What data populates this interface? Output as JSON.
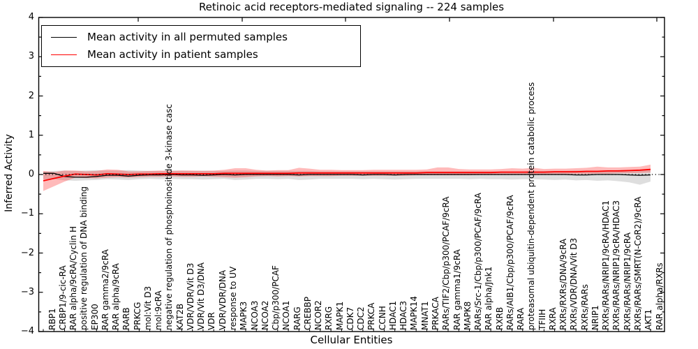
{
  "title": "Retinoic acid receptors-mediated signaling -- 224 samples",
  "legend": [
    {
      "label": "Mean activity in all permuted samples",
      "color": "#000000"
    },
    {
      "label": "Mean activity in patient samples",
      "color": "#ff0000"
    }
  ],
  "colors": {
    "permuted_line": "#000000",
    "patient_line": "#ff0000",
    "permuted_band": "rgba(0,0,0,0.13)",
    "patient_band": "rgba(255,0,0,0.27)",
    "frame": "#000000"
  },
  "chart_data": {
    "type": "line",
    "title": "Retinoic acid receptors-mediated signaling -- 224 samples",
    "xlabel": "Cellular Entities",
    "ylabel": "Inferred Activity",
    "ylim": [
      -4,
      4
    ],
    "grid": false,
    "legend_position": "upper-left",
    "zero_reference_line": "black dotted at y=0",
    "yticks": [
      {
        "value": 4,
        "label": "4"
      },
      {
        "value": 3,
        "label": "3"
      },
      {
        "value": 2,
        "label": "2"
      },
      {
        "value": 1,
        "label": "1"
      },
      {
        "value": 0,
        "label": "0"
      },
      {
        "value": -1,
        "label": "−1"
      },
      {
        "value": -2,
        "label": "−2"
      },
      {
        "value": -3,
        "label": "−3"
      },
      {
        "value": -4,
        "label": "−4"
      }
    ],
    "categories": [
      "RBP1",
      "CRBP1/9-cic-RA",
      "RAR alpha/9cRA/Cyclin H",
      "positive regulation of DNA binding",
      "EP300",
      "RAR gamma2/9cRA",
      "RAR alpha/9cRA",
      "RARB",
      "PRKCG",
      "mol:Vit D3",
      "mol:9cRA",
      "negative regulation of phosphoinositide 3-kinase casc",
      "KAT2B",
      "VDR/VDR/Vit D3",
      "VDR/Vit D3/DNA",
      "VDR",
      "VDR/VDR/DNA",
      "response to UV",
      "MAPK3",
      "NCOA3",
      "NCOA2",
      "Cbp/p300/PCAF",
      "NCOA1",
      "RARG",
      "CREBBP",
      "NCOR2",
      "RXRG",
      "MAPK1",
      "CDK7",
      "CDC2",
      "PRKCA",
      "CCNH",
      "HDAC1",
      "HDAC3",
      "MAPK14",
      "MNAT1",
      "PRKACA",
      "RARs/TIF2/Cbp/p300/PCAF/9cRA",
      "RAR gamma1/9cRA",
      "MAPK8",
      "RARs/Src-1/Cbp/p300/PCAF/9cRA",
      "RAR alpha/Jnk1",
      "RXRB",
      "RARs/AIB1/Cbp/p300/PCAF/9cRA",
      "RARA",
      "proteasomal ubiquitin-dependent protein catabolic process",
      "TFIIH",
      "RXRA",
      "RXRs/RXRs/DNA/9cRA",
      "RXRs/VDR/DNA/Vit D3",
      "RXRs/RARs",
      "NRIP1",
      "RXRs/RARs/NRIP1/9cRA/HDAC1",
      "RXRs/RARs/NRIP1/9cRA/HDAC3",
      "RXRs/RARs/NRIP1/9cRA",
      "RXRs/RARs/SMRT(N-CoR2)/9cRA",
      "AKT1",
      "RAR alpha/RXRs"
    ],
    "series": [
      {
        "name": "Mean activity in all permuted samples",
        "color": "#000000",
        "values": [
          0.03,
          0.03,
          -0.05,
          -0.07,
          -0.07,
          -0.05,
          -0.02,
          -0.02,
          -0.04,
          -0.02,
          -0.01,
          -0.01,
          0.0,
          -0.01,
          -0.01,
          -0.02,
          -0.01,
          0.0,
          -0.01,
          0.0,
          0.0,
          0.0,
          0.0,
          0.0,
          -0.01,
          0.0,
          0.0,
          0.0,
          0.0,
          0.0,
          -0.01,
          0.0,
          0.0,
          -0.01,
          0.0,
          0.0,
          0.0,
          0.0,
          0.0,
          0.0,
          0.0,
          0.0,
          0.0,
          0.0,
          0.0,
          0.0,
          0.0,
          0.0,
          0.0,
          0.0,
          -0.01,
          -0.01,
          0.0,
          0.0,
          0.0,
          -0.01,
          -0.02,
          -0.01
        ]
      },
      {
        "name": "Mean activity in patient samples",
        "color": "#ff0000",
        "values": [
          -0.16,
          -0.1,
          -0.04,
          0.01,
          0.0,
          -0.01,
          0.02,
          0.01,
          0.0,
          0.01,
          0.01,
          0.02,
          0.02,
          0.02,
          0.02,
          0.02,
          0.02,
          0.03,
          0.03,
          0.03,
          0.03,
          0.03,
          0.03,
          0.03,
          0.04,
          0.04,
          0.04,
          0.04,
          0.04,
          0.04,
          0.04,
          0.04,
          0.04,
          0.04,
          0.04,
          0.04,
          0.05,
          0.05,
          0.05,
          0.05,
          0.05,
          0.05,
          0.05,
          0.06,
          0.06,
          0.06,
          0.06,
          0.06,
          0.07,
          0.07,
          0.07,
          0.08,
          0.08,
          0.09,
          0.09,
          0.1,
          0.11,
          0.13
        ]
      }
    ],
    "bands": [
      {
        "name": "permuted samples spread",
        "color": "rgba(0,0,0,0.13)",
        "upper": [
          0.07,
          0.09,
          0.1,
          0.09,
          0.1,
          0.11,
          0.1,
          0.1,
          0.11,
          0.1,
          0.09,
          0.09,
          0.1,
          0.1,
          0.09,
          0.1,
          0.09,
          0.09,
          0.1,
          0.1,
          0.09,
          0.09,
          0.09,
          0.09,
          0.09,
          0.09,
          0.08,
          0.08,
          0.08,
          0.08,
          0.08,
          0.08,
          0.08,
          0.08,
          0.08,
          0.08,
          0.08,
          0.08,
          0.08,
          0.08,
          0.08,
          0.08,
          0.08,
          0.08,
          0.08,
          0.08,
          0.09,
          0.09,
          0.09,
          0.09,
          0.1,
          0.1,
          0.1,
          0.1,
          0.11,
          0.11,
          0.12,
          0.12
        ],
        "lower": [
          -0.12,
          -0.12,
          -0.15,
          -0.16,
          -0.15,
          -0.14,
          -0.12,
          -0.13,
          -0.14,
          -0.12,
          -0.11,
          -0.12,
          -0.11,
          -0.12,
          -0.12,
          -0.13,
          -0.12,
          -0.11,
          -0.14,
          -0.13,
          -0.11,
          -0.11,
          -0.12,
          -0.11,
          -0.14,
          -0.13,
          -0.11,
          -0.11,
          -0.11,
          -0.11,
          -0.12,
          -0.11,
          -0.12,
          -0.13,
          -0.12,
          -0.11,
          -0.11,
          -0.11,
          -0.11,
          -0.11,
          -0.12,
          -0.11,
          -0.12,
          -0.12,
          -0.13,
          -0.12,
          -0.12,
          -0.13,
          -0.14,
          -0.13,
          -0.15,
          -0.14,
          -0.16,
          -0.15,
          -0.17,
          -0.2,
          -0.26,
          -0.18
        ]
      },
      {
        "name": "patient samples spread",
        "color": "rgba(255,0,0,0.27)",
        "upper": [
          0.09,
          0.06,
          0.1,
          0.1,
          0.08,
          0.09,
          0.13,
          0.12,
          0.08,
          0.08,
          0.09,
          0.1,
          0.09,
          0.1,
          0.1,
          0.09,
          0.1,
          0.12,
          0.16,
          0.16,
          0.12,
          0.1,
          0.11,
          0.11,
          0.17,
          0.15,
          0.12,
          0.12,
          0.11,
          0.11,
          0.11,
          0.12,
          0.12,
          0.12,
          0.12,
          0.12,
          0.13,
          0.18,
          0.18,
          0.14,
          0.13,
          0.13,
          0.13,
          0.14,
          0.16,
          0.15,
          0.17,
          0.14,
          0.15,
          0.15,
          0.16,
          0.17,
          0.2,
          0.18,
          0.18,
          0.19,
          0.2,
          0.25
        ],
        "lower": [
          -0.42,
          -0.3,
          -0.18,
          -0.08,
          -0.09,
          -0.1,
          -0.08,
          -0.07,
          -0.08,
          -0.07,
          -0.06,
          -0.06,
          -0.05,
          -0.06,
          -0.06,
          -0.05,
          -0.06,
          -0.07,
          -0.08,
          -0.07,
          -0.05,
          -0.04,
          -0.05,
          -0.04,
          -0.05,
          -0.04,
          -0.04,
          -0.04,
          -0.03,
          -0.03,
          -0.03,
          -0.03,
          -0.03,
          -0.03,
          -0.03,
          -0.02,
          -0.02,
          -0.02,
          -0.02,
          -0.02,
          -0.02,
          -0.01,
          -0.01,
          -0.01,
          -0.01,
          0.0,
          0.0,
          0.0,
          0.0,
          0.01,
          0.01,
          0.01,
          0.02,
          0.02,
          0.03,
          0.03,
          0.04,
          0.05
        ]
      }
    ]
  }
}
